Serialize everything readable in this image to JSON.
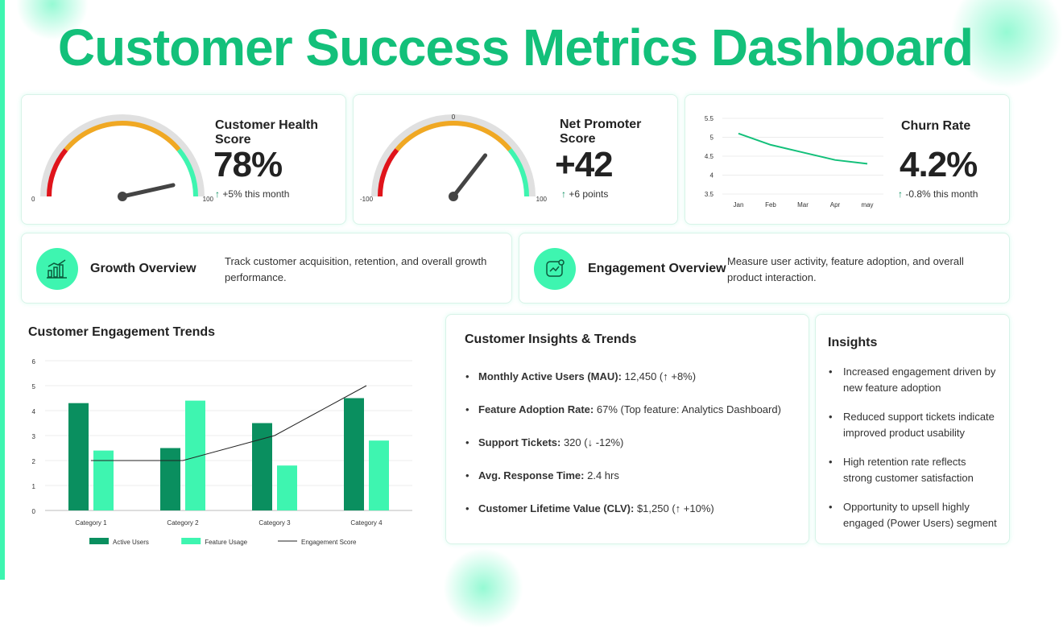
{
  "title": "Customer Success Metrics Dashboard",
  "colors": {
    "accent": "#13c07a",
    "mint": "#3ef5b0",
    "dark_green": "#0a8f5f",
    "red": "#e0141b",
    "amber": "#f0a823",
    "gray": "#e0e0e0"
  },
  "kpis": {
    "health": {
      "title": "Customer Health Score",
      "value": "78%",
      "delta": "+5% this month",
      "min_label": "0",
      "max_label": "100",
      "level": 0.78
    },
    "nps": {
      "title": "Net Promoter Score",
      "value": "+42",
      "delta": "+6 points",
      "min_label": "-100",
      "mid_label": "0",
      "max_label": "100",
      "level": 0.71
    },
    "churn": {
      "title": "Churn Rate",
      "value": "4.2%",
      "delta": "-0.8% this month"
    }
  },
  "overviews": {
    "growth": {
      "title": "Growth Overview",
      "desc": "Track customer acquisition, retention, and overall growth performance.",
      "icon": "bar-chart-icon"
    },
    "engagement": {
      "title": "Engagement Overview",
      "desc": "Measure user activity, feature adoption, and overall product interaction.",
      "icon": "chart-screen-icon"
    }
  },
  "customer_insights": {
    "title": "Customer Insights & Trends",
    "items": [
      {
        "label": "Monthly Active Users (MAU):",
        "value": " 12,450 (↑ +8%)"
      },
      {
        "label": "Feature Adoption Rate:",
        "value": " 67% (Top feature: Analytics Dashboard)"
      },
      {
        "label": "Support Tickets:",
        "value": " 320 (↓ -12%)"
      },
      {
        "label": "Avg. Response Time:",
        "value": " 2.4 hrs"
      },
      {
        "label": "Customer Lifetime Value (CLV):",
        "value": " $1,250 (↑ +10%)"
      }
    ]
  },
  "insights": {
    "title": "Insights",
    "items": [
      "Increased engagement driven by new feature adoption",
      "Reduced support tickets indicate improved product usability",
      "High retention rate reflects strong customer satisfaction",
      "Opportunity to upsell highly engaged (Power Users) segment"
    ]
  },
  "chart_data": [
    {
      "type": "line",
      "x": [
        "Jan",
        "Feb",
        "Mar",
        "Apr",
        "may"
      ],
      "series": [
        {
          "values": [
            5.1,
            4.8,
            4.6,
            4.4,
            4.3
          ]
        }
      ],
      "ylim": [
        3.5,
        5.5
      ],
      "yticks": [
        "5.5",
        "5",
        "4.5",
        "4",
        "3.5"
      ],
      "grid": true
    },
    {
      "type": "bar",
      "title": "Customer Engagement Trends",
      "categories": [
        "Category 1",
        "Category 2",
        "Category 3",
        "Category 4"
      ],
      "series": [
        {
          "name": "Active Users",
          "values": [
            4.3,
            2.5,
            3.5,
            4.5
          ],
          "color": "#0a8f5f"
        },
        {
          "name": "Feature Usage",
          "values": [
            2.4,
            4.4,
            1.8,
            2.8
          ],
          "color": "#3ef5b0"
        },
        {
          "name": "Engagement Score",
          "values": [
            2,
            2,
            3,
            5
          ],
          "type": "line",
          "color": "#222222"
        }
      ],
      "ylim": [
        0,
        6
      ],
      "yticks": [
        "0",
        "1",
        "2",
        "3",
        "4",
        "5",
        "6"
      ],
      "grid": true,
      "legend": "bottom"
    }
  ]
}
